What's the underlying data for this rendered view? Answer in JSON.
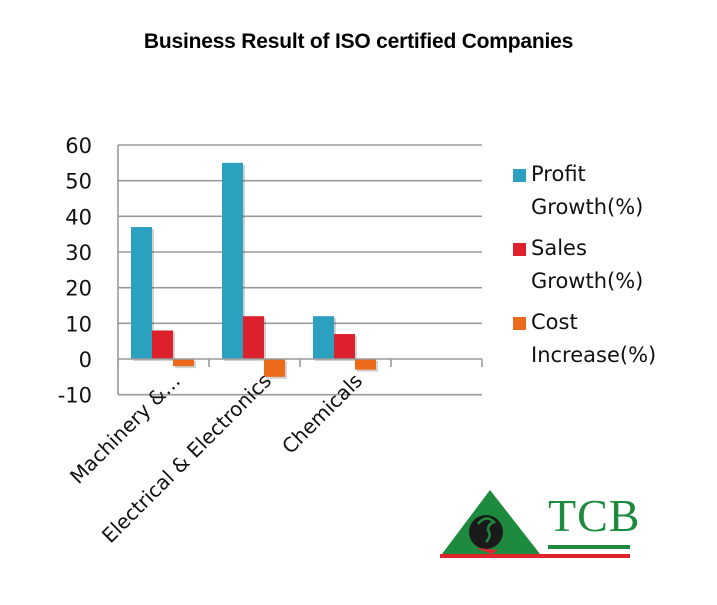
{
  "title": "Business Result of ISO certified Companies",
  "chart_data": {
    "type": "bar",
    "title": "Business Result of ISO certified Companies",
    "xlabel": "",
    "ylabel": "",
    "categories": [
      "Machinery &…",
      "Electrical & Electronics",
      "Chemicals"
    ],
    "series": [
      {
        "name": "Profit Growth(%)",
        "color": "#2ba0bf",
        "values": [
          37,
          55,
          12
        ]
      },
      {
        "name": "Sales Growth(%)",
        "color": "#dc202c",
        "values": [
          8,
          12,
          7
        ]
      },
      {
        "name": "Cost Increase(%)",
        "color": "#ec6a1c",
        "values": [
          -2,
          -5,
          -3
        ]
      }
    ],
    "ylim": [
      -10,
      60
    ],
    "yticks": [
      60,
      50,
      40,
      30,
      20,
      10,
      0,
      -10
    ],
    "grid": true,
    "legend_position": "right"
  },
  "legend": {
    "items": [
      {
        "line1": "Profit",
        "line2": "Growth(%)",
        "color": "#2ba0bf"
      },
      {
        "line1": "Sales",
        "line2": "Growth(%)",
        "color": "#dc202c"
      },
      {
        "line1": "Cost",
        "line2": "Increase(%)",
        "color": "#ec6a1c"
      }
    ]
  },
  "logo": {
    "text": "TCB",
    "green": "#1e8a3e",
    "red": "#e0262c"
  }
}
